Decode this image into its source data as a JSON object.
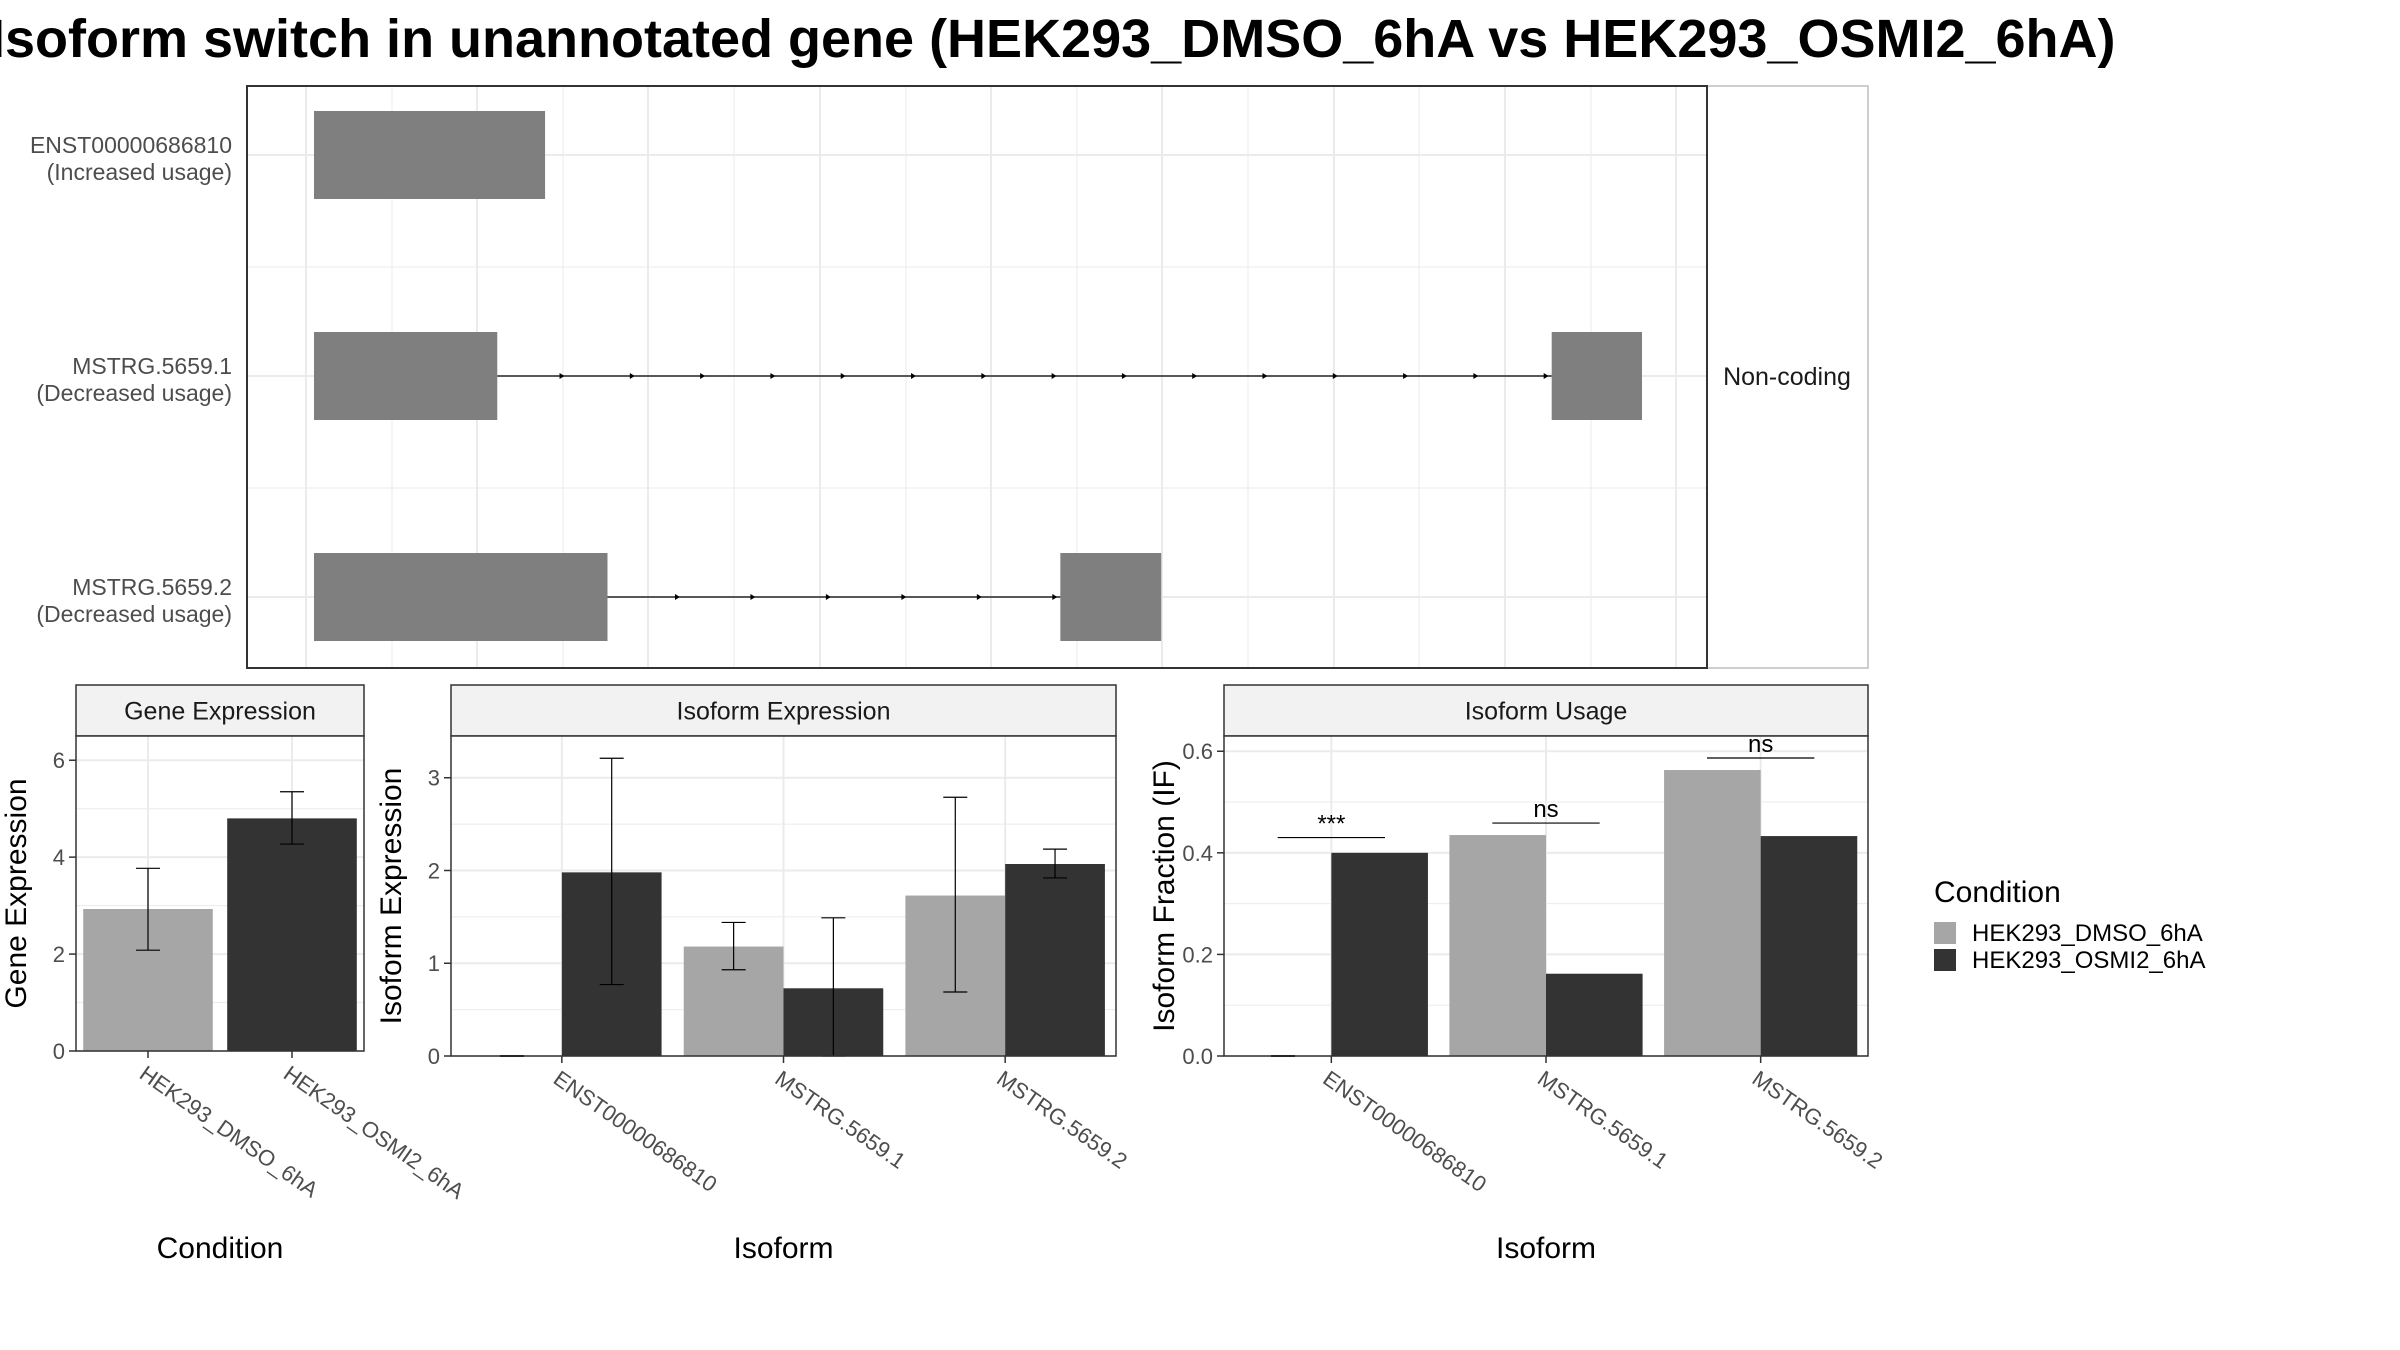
{
  "title": "Isoform switch in unannotated gene (HEK293_DMSO_6hA vs HEK293_OSMI2_6hA)",
  "colors": {
    "dmso": "#a6a6a6",
    "osmi": "#333333",
    "exon": "#7f7f7f",
    "strip_bg": "#f2f2f2",
    "grid": "#ebebeb"
  },
  "chart_data": [
    {
      "type": "bar",
      "panel": "structure",
      "coding_label": "Non-coding",
      "isoforms": [
        {
          "id": "ENST00000686810",
          "usage": "(Increased usage)",
          "exons": [
            [
              0,
              0.174
            ]
          ]
        },
        {
          "id": "MSTRG.5659.1",
          "usage": "(Decreased usage)",
          "exons": [
            [
              0,
              0.138
            ],
            [
              0.932,
              1.0
            ]
          ]
        },
        {
          "id": "MSTRG.5659.2",
          "usage": "(Decreased usage)",
          "exons": [
            [
              0,
              0.221
            ],
            [
              0.562,
              0.638
            ]
          ]
        }
      ]
    },
    {
      "type": "bar",
      "panel": "gene",
      "title": "Gene Expression",
      "xlabel": "Condition",
      "ylabel": "Gene Expression",
      "ylim": [
        0,
        6.5
      ],
      "yticks": [
        "0",
        "2",
        "4",
        "6"
      ],
      "categories": [
        "HEK293_DMSO_6hA",
        "HEK293_OSMI2_6hA"
      ],
      "values": [
        2.93,
        4.8
      ],
      "err_low": [
        2.08,
        4.27
      ],
      "err_high": [
        3.77,
        5.35
      ]
    },
    {
      "type": "bar",
      "panel": "isoform_expression",
      "title": "Isoform Expression",
      "xlabel": "Isoform",
      "ylabel": "Isoform Expression",
      "ylim": [
        0,
        3.45
      ],
      "yticks": [
        "0",
        "1",
        "2",
        "3"
      ],
      "categories": [
        "ENST00000686810",
        "MSTRG.5659.1",
        "MSTRG.5659.2"
      ],
      "series": [
        {
          "name": "HEK293_DMSO_6hA",
          "values": [
            0,
            1.18,
            1.73
          ],
          "err_low": [
            0,
            0.93,
            0.69
          ],
          "err_high": [
            0,
            1.44,
            2.79
          ]
        },
        {
          "name": "HEK293_OSMI2_6hA",
          "values": [
            1.98,
            0.73,
            2.07
          ],
          "err_low": [
            0.77,
            0.0,
            1.92
          ],
          "err_high": [
            3.21,
            1.49,
            2.23
          ]
        }
      ]
    },
    {
      "type": "bar",
      "panel": "isoform_usage",
      "title": "Isoform Usage",
      "xlabel": "Isoform",
      "ylabel": "Isoform Fraction (IF)",
      "ylim": [
        0,
        0.63
      ],
      "yticks": [
        "0.0",
        "0.2",
        "0.4",
        "0.6"
      ],
      "categories": [
        "ENST00000686810",
        "MSTRG.5659.1",
        "MSTRG.5659.2"
      ],
      "series": [
        {
          "name": "HEK293_DMSO_6hA",
          "values": [
            0,
            0.435,
            0.563
          ]
        },
        {
          "name": "HEK293_OSMI2_6hA",
          "values": [
            0.4,
            0.162,
            0.433
          ]
        }
      ],
      "significance": [
        "***",
        "ns",
        "ns"
      ]
    }
  ],
  "legend": {
    "title": "Condition",
    "items": [
      "HEK293_DMSO_6hA",
      "HEK293_OSMI2_6hA"
    ]
  }
}
